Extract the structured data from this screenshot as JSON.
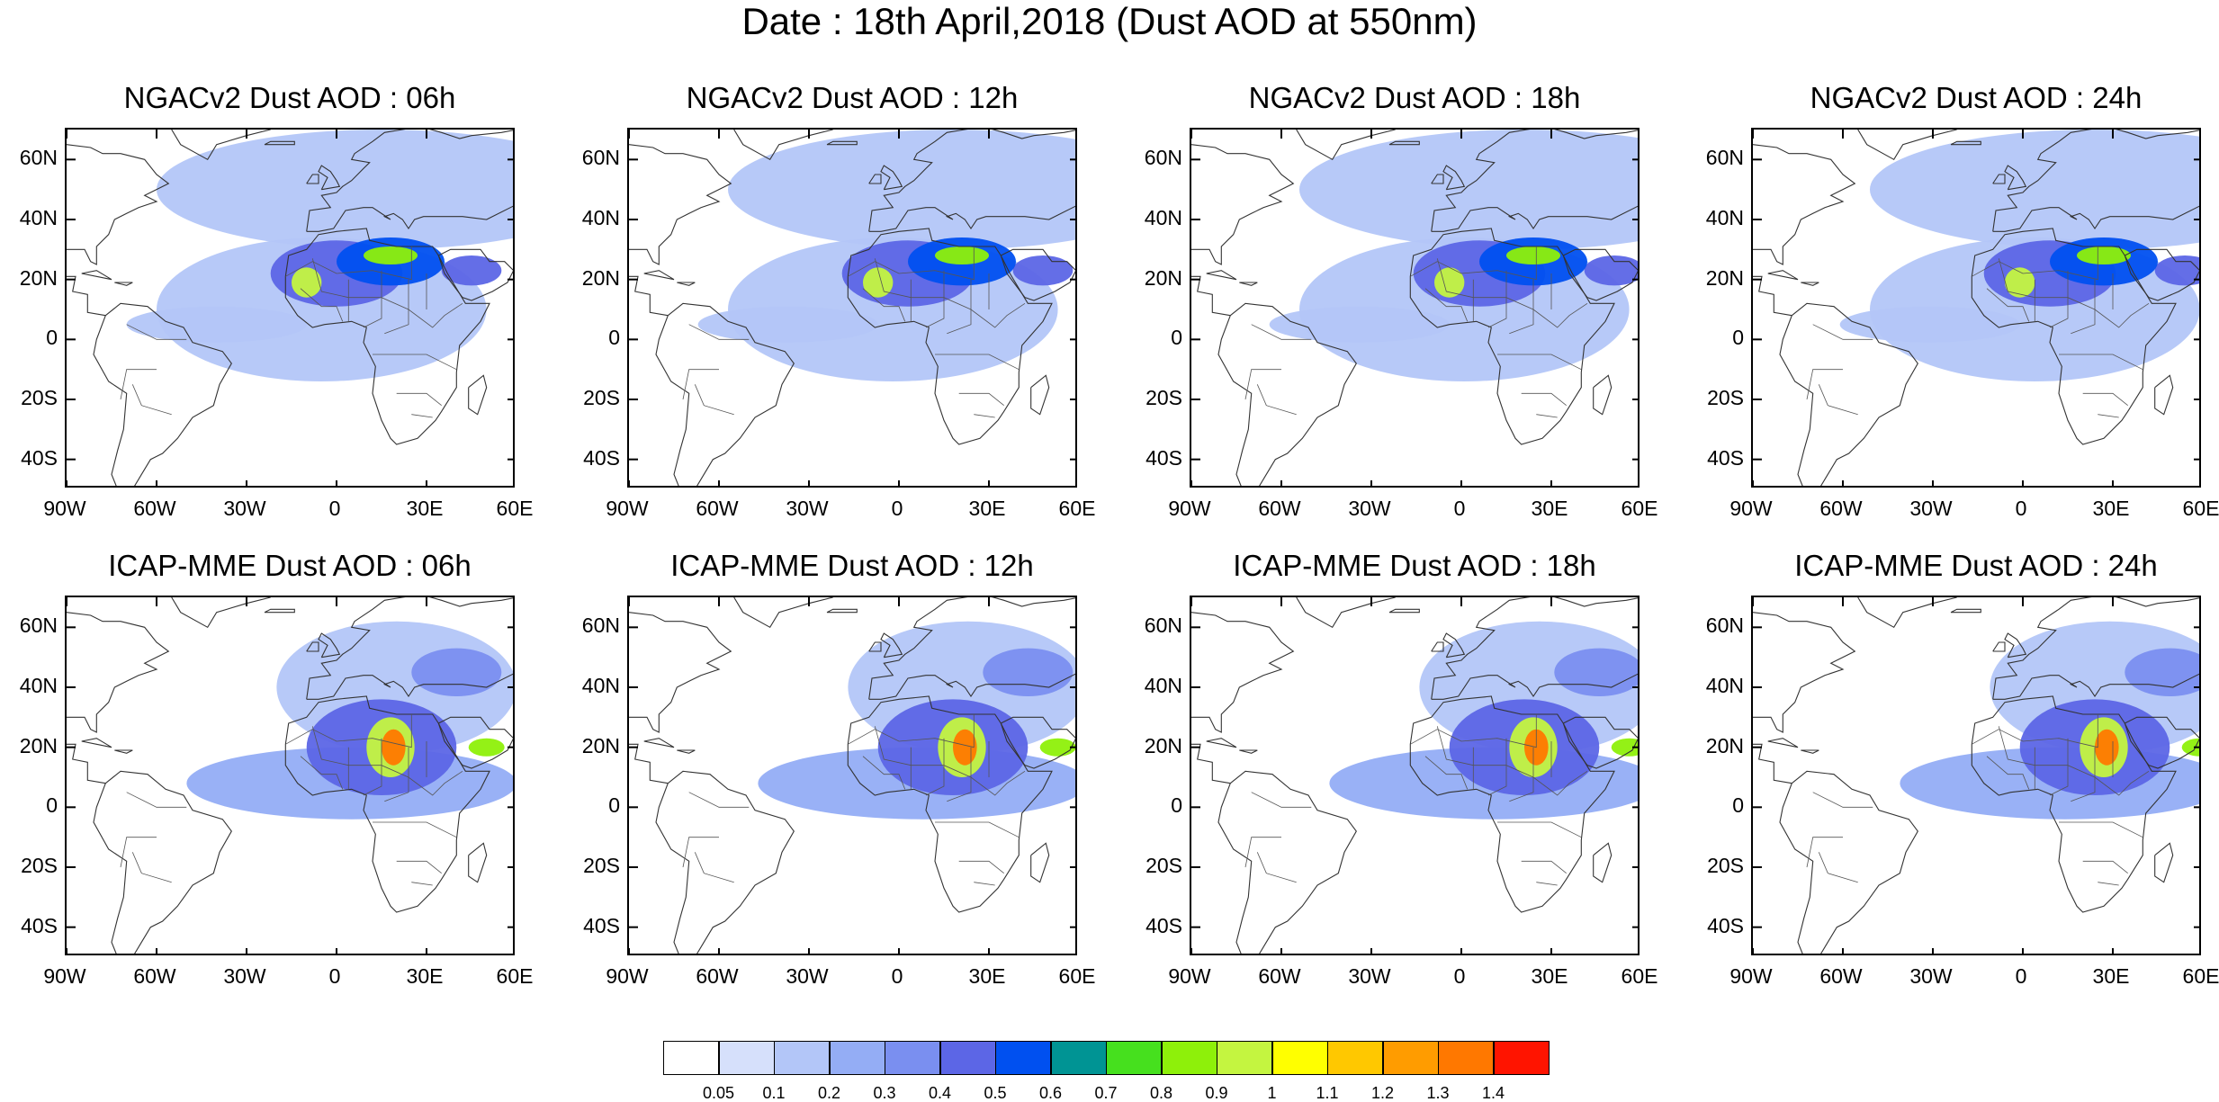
{
  "title": "Date : 18th April,2018 (Dust AOD at 550nm)",
  "lat_labels": [
    "60N",
    "40N",
    "20N",
    "0",
    "20S",
    "40S"
  ],
  "lon_labels": [
    "90W",
    "60W",
    "30W",
    "0",
    "30E",
    "60E"
  ],
  "panels": [
    {
      "title": "NGACv2 Dust AOD : 06h",
      "model": "NGACv2",
      "hour": "06h"
    },
    {
      "title": "NGACv2 Dust AOD : 12h",
      "model": "NGACv2",
      "hour": "12h"
    },
    {
      "title": "NGACv2 Dust AOD : 18h",
      "model": "NGACv2",
      "hour": "18h"
    },
    {
      "title": "NGACv2 Dust AOD : 24h",
      "model": "NGACv2",
      "hour": "24h"
    },
    {
      "title": "ICAP-MME Dust AOD : 06h",
      "model": "ICAP-MME",
      "hour": "06h"
    },
    {
      "title": "ICAP-MME Dust AOD : 12h",
      "model": "ICAP-MME",
      "hour": "12h"
    },
    {
      "title": "ICAP-MME Dust AOD : 18h",
      "model": "ICAP-MME",
      "hour": "18h"
    },
    {
      "title": "ICAP-MME Dust AOD : 24h",
      "model": "ICAP-MME",
      "hour": "24h"
    }
  ],
  "colorbar": {
    "labels": [
      "0.05",
      "0.1",
      "0.2",
      "0.3",
      "0.4",
      "0.5",
      "0.6",
      "0.7",
      "0.8",
      "0.9",
      "1",
      "1.1",
      "1.2",
      "1.3",
      "1.4"
    ],
    "colors": [
      "#ffffff",
      "#d6e0fb",
      "#b3c6f8",
      "#94adf5",
      "#7a8ff0",
      "#5c66e6",
      "#0050f0",
      "#009494",
      "#46e01e",
      "#8ef00a",
      "#c4f540",
      "#ffff00",
      "#ffc800",
      "#ff9c00",
      "#ff7800",
      "#ff1400"
    ]
  }
}
